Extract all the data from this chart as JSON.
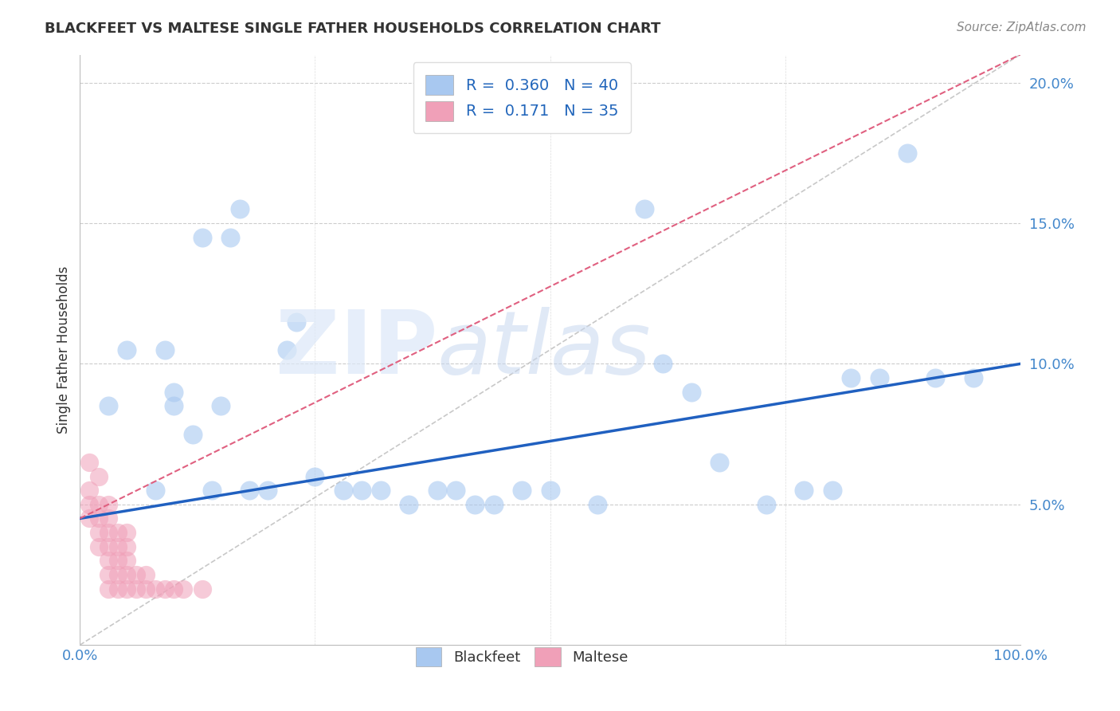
{
  "title": "BLACKFEET VS MALTESE SINGLE FATHER HOUSEHOLDS CORRELATION CHART",
  "source": "Source: ZipAtlas.com",
  "ylabel": "Single Father Households",
  "xlim": [
    0,
    100
  ],
  "ylim": [
    0,
    21
  ],
  "yticks": [
    0,
    5,
    10,
    15,
    20
  ],
  "ytick_labels": [
    "",
    "5.0%",
    "10.0%",
    "15.0%",
    "20.0%"
  ],
  "xtick_labels_left": "0.0%",
  "xtick_labels_right": "100.0%",
  "R_blackfeet": 0.36,
  "N_blackfeet": 40,
  "R_maltese": 0.171,
  "N_maltese": 35,
  "blackfeet_color": "#a8c8f0",
  "maltese_color": "#f0a0b8",
  "regression_blue_color": "#2060c0",
  "regression_pink_color": "#e06080",
  "blackfeet_x": [
    3,
    5,
    8,
    9,
    10,
    10,
    12,
    13,
    14,
    15,
    16,
    17,
    18,
    20,
    22,
    23,
    25,
    28,
    30,
    32,
    35,
    38,
    40,
    42,
    44,
    47,
    50,
    55,
    60,
    62,
    65,
    68,
    73,
    77,
    80,
    82,
    85,
    88,
    91,
    95
  ],
  "blackfeet_y": [
    8.5,
    10.5,
    5.5,
    10.5,
    8.5,
    9.0,
    7.5,
    14.5,
    5.5,
    8.5,
    14.5,
    15.5,
    5.5,
    5.5,
    10.5,
    11.5,
    6.0,
    5.5,
    5.5,
    5.5,
    5.0,
    5.5,
    5.5,
    5.0,
    5.0,
    5.5,
    5.5,
    5.0,
    15.5,
    10.0,
    9.0,
    6.5,
    5.0,
    5.5,
    5.5,
    9.5,
    9.5,
    17.5,
    9.5,
    9.5
  ],
  "maltese_x": [
    1,
    1,
    1,
    1,
    2,
    2,
    2,
    2,
    2,
    3,
    3,
    3,
    3,
    3,
    3,
    3,
    4,
    4,
    4,
    4,
    4,
    5,
    5,
    5,
    5,
    5,
    6,
    6,
    7,
    7,
    8,
    9,
    10,
    11,
    13
  ],
  "maltese_y": [
    4.5,
    5.0,
    5.5,
    6.5,
    3.5,
    4.0,
    4.5,
    5.0,
    6.0,
    2.0,
    2.5,
    3.0,
    3.5,
    4.0,
    4.5,
    5.0,
    2.0,
    2.5,
    3.0,
    3.5,
    4.0,
    2.0,
    2.5,
    3.0,
    3.5,
    4.0,
    2.0,
    2.5,
    2.0,
    2.5,
    2.0,
    2.0,
    2.0,
    2.0,
    2.0
  ],
  "blue_line_x0": 0,
  "blue_line_y0": 4.5,
  "blue_line_x1": 100,
  "blue_line_y1": 10.0,
  "pink_line_x0": 0,
  "pink_line_y0": 4.5,
  "pink_line_x1": 100,
  "pink_line_y1": 21.0,
  "ref_line_x0": 0,
  "ref_line_y0": 0,
  "ref_line_x1": 100,
  "ref_line_y1": 21
}
